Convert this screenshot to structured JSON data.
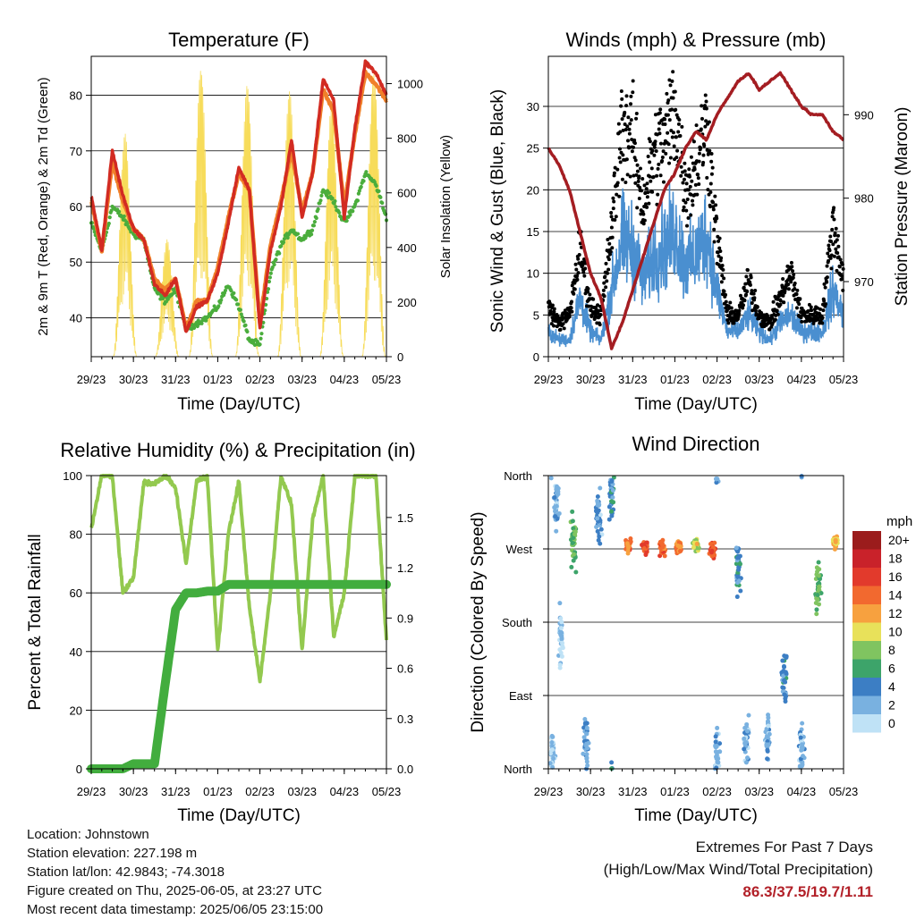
{
  "days": [
    "29/23",
    "30/23",
    "31/23",
    "01/23",
    "02/23",
    "03/23",
    "04/23",
    "05/23"
  ],
  "colors": {
    "temp_2m": "#d22b22",
    "temp_9m": "#f0802a",
    "dewpoint": "#4aad3c",
    "solar": "#f7dc5a",
    "wind": "#4a8fd0",
    "gust": "#000000",
    "pressure": "#a41d22",
    "rh": "#93c94f",
    "precip": "#42ad3e"
  },
  "panels": {
    "temperature": {
      "title": "Temperature (F)",
      "xlabel": "Time (Day/UTC)",
      "ylabel": "2m & 9m T (Red, Orange) & 2m Td (Green)",
      "ylabel_right": "Solar Insolation (Yellow)",
      "ylim": [
        33,
        87
      ],
      "ylim_right": [
        0,
        1100
      ],
      "yticks": [
        40,
        50,
        60,
        70,
        80
      ],
      "yticks_right": [
        0,
        200,
        400,
        600,
        800,
        1000
      ]
    },
    "winds": {
      "title": "Winds (mph) & Pressure (mb)",
      "xlabel": "Time (Day/UTC)",
      "ylabel": "Sonic Wind & Gust (Blue, Black)",
      "ylabel_right": "Station Pressure (Maroon)",
      "ylim": [
        0,
        36
      ],
      "ylim_right": [
        961,
        997
      ],
      "yticks": [
        0,
        5,
        10,
        15,
        20,
        25,
        30
      ],
      "yticks_right": [
        970,
        980,
        990
      ]
    },
    "humidity": {
      "title": "Relative Humidity (%) & Precipitation (in)",
      "xlabel": "Time (Day/UTC)",
      "ylabel": "Percent & Total Rainfall",
      "ylim": [
        0,
        100
      ],
      "ylim_right": [
        0,
        1.75
      ],
      "yticks": [
        0,
        20,
        40,
        60,
        80,
        100
      ],
      "yticks_right": [
        "0.0",
        "0.3",
        "0.6",
        "0.9",
        "1.2",
        "1.5"
      ]
    },
    "direction": {
      "title": "Wind Direction",
      "xlabel": "Time (Day/UTC)",
      "ylabel": "Direction (Colored By Speed)",
      "ylabels": [
        "North",
        "East",
        "South",
        "West",
        "North"
      ],
      "colorbar_title": "mph",
      "colorbar_labels": [
        "20+",
        "18",
        "16",
        "14",
        "12",
        "10",
        "8",
        "6",
        "4",
        "2",
        "0"
      ],
      "colorbar_colors": [
        "#9b1c1c",
        "#c9222a",
        "#e23a2c",
        "#f2692f",
        "#f7a13f",
        "#e8e15a",
        "#80c460",
        "#3da46a",
        "#3c7ec4",
        "#79b1e0",
        "#bfe2f6"
      ]
    }
  },
  "chart_data": [
    {
      "type": "line",
      "title": "Temperature (F)",
      "xlabel": "Time (Day/UTC)",
      "ylabel": "2m & 9m T (Red, Orange) & 2m Td (Green)",
      "ylabel_right": "Solar Insolation (Yellow)",
      "x_days": [
        0,
        0.25,
        0.5,
        0.75,
        1.0,
        1.25,
        1.5,
        1.75,
        2.0,
        2.25,
        2.5,
        2.75,
        3.0,
        3.25,
        3.5,
        3.75,
        4.0,
        4.25,
        4.5,
        4.75,
        5.0,
        5.25,
        5.5,
        5.75,
        6.0,
        6.25,
        6.5,
        6.75,
        7.0
      ],
      "series": [
        {
          "values": [
            62,
            52,
            70,
            62,
            56,
            54,
            46,
            44,
            47,
            37.5,
            42,
            43,
            48,
            57,
            67,
            63,
            38,
            52,
            60,
            72,
            58,
            66,
            83,
            79,
            58,
            74,
            86,
            84,
            80
          ]
        },
        {
          "values": [
            61,
            52,
            68,
            61,
            56,
            54,
            47,
            45,
            47,
            38,
            43,
            43,
            49,
            58,
            66,
            63,
            39,
            53,
            61,
            70,
            59,
            66,
            81,
            77,
            60,
            73,
            84,
            82,
            79
          ]
        },
        {
          "values": [
            57,
            52,
            60,
            58,
            55,
            54,
            45,
            43,
            45,
            38,
            39,
            40,
            42,
            46,
            42,
            36,
            35,
            48,
            53,
            56,
            54,
            56,
            63,
            61,
            57,
            60,
            66,
            64,
            58
          ]
        }
      ],
      "solar_peaks": [
        {
          "day": 0.8,
          "value": 820
        },
        {
          "day": 1.8,
          "value": 430
        },
        {
          "day": 2.6,
          "value": 1060
        },
        {
          "day": 3.7,
          "value": 1000
        },
        {
          "day": 4.7,
          "value": 980
        },
        {
          "day": 5.7,
          "value": 930
        },
        {
          "day": 6.7,
          "value": 1050
        }
      ],
      "ylim": [
        33,
        87
      ],
      "ylim_right": [
        0,
        1100
      ]
    },
    {
      "type": "scatter",
      "title": "Winds (mph) & Pressure (mb)",
      "xlabel": "Time (Day/UTC)",
      "ylabel": "Sonic Wind & Gust (Blue, Black)",
      "ylabel_right": "Station Pressure (Maroon)",
      "x_days": [
        0,
        0.25,
        0.5,
        0.75,
        1.0,
        1.25,
        1.5,
        1.75,
        2.0,
        2.25,
        2.5,
        2.75,
        3.0,
        3.25,
        3.5,
        3.75,
        4.0,
        4.25,
        4.5,
        4.75,
        5.0,
        5.25,
        5.5,
        5.75,
        6.0,
        6.25,
        6.5,
        6.75,
        7.0
      ],
      "series": [
        {
          "values": [
            3,
            2,
            2,
            7,
            3,
            2,
            8,
            14,
            13,
            9,
            12,
            13,
            15,
            11,
            12,
            15,
            8,
            3,
            3,
            5,
            3,
            2,
            4,
            5,
            3,
            3,
            3,
            8,
            5
          ]
        },
        {
          "values": [
            6,
            4,
            5,
            13,
            6,
            5,
            15,
            28,
            26,
            18,
            24,
            26,
            30,
            20,
            23,
            28,
            14,
            5,
            5,
            9,
            5,
            4,
            7,
            10,
            5,
            5,
            5,
            16,
            9
          ]
        },
        {
          "values": [
            986,
            984,
            981,
            976,
            971,
            968,
            962,
            965,
            969,
            973,
            977,
            981,
            983,
            986,
            988,
            987,
            990,
            992,
            994,
            995,
            993,
            994,
            995,
            993,
            991,
            990,
            990,
            988,
            987
          ]
        }
      ],
      "ylim": [
        0,
        36
      ],
      "ylim_right": [
        961,
        997
      ]
    },
    {
      "type": "line",
      "title": "Relative Humidity (%) & Precipitation (in)",
      "xlabel": "Time (Day/UTC)",
      "ylabel": "Percent & Total Rainfall",
      "x_days": [
        0,
        0.25,
        0.5,
        0.75,
        1.0,
        1.25,
        1.5,
        1.75,
        2.0,
        2.25,
        2.5,
        2.75,
        3.0,
        3.25,
        3.5,
        3.75,
        4.0,
        4.25,
        4.5,
        4.75,
        5.0,
        5.25,
        5.5,
        5.75,
        6.0,
        6.25,
        6.5,
        6.75,
        7.0
      ],
      "series": [
        {
          "values": [
            82,
            100,
            100,
            60,
            65,
            98,
            97,
            100,
            96,
            70,
            98,
            100,
            40,
            80,
            98,
            55,
            30,
            60,
            100,
            90,
            40,
            85,
            100,
            45,
            60,
            100,
            100,
            100,
            44
          ]
        },
        {
          "values": [
            0,
            0,
            0,
            0,
            0.03,
            0.03,
            0.03,
            0.5,
            0.95,
            1.05,
            1.05,
            1.06,
            1.06,
            1.1,
            1.1,
            1.1,
            1.1,
            1.1,
            1.1,
            1.1,
            1.1,
            1.1,
            1.1,
            1.1,
            1.1,
            1.1,
            1.1,
            1.1,
            1.1
          ]
        }
      ],
      "ylim": [
        0,
        100
      ],
      "ylim_right": [
        0,
        1.75
      ]
    },
    {
      "type": "scatter",
      "title": "Wind Direction",
      "xlabel": "Time (Day/UTC)",
      "ylabel": "Direction (Colored By Speed)",
      "direction_clusters": [
        {
          "day": 0.1,
          "dir": 20,
          "speed": 1
        },
        {
          "day": 0.2,
          "dir": 320,
          "speed": 2
        },
        {
          "day": 0.3,
          "dir": 160,
          "speed": 1
        },
        {
          "day": 0.6,
          "dir": 280,
          "speed": 7
        },
        {
          "day": 0.9,
          "dir": 30,
          "speed": 3
        },
        {
          "day": 1.2,
          "dir": 310,
          "speed": 3
        },
        {
          "day": 1.5,
          "dir": 335,
          "speed": 4
        },
        {
          "day": 1.9,
          "dir": 275,
          "speed": 14
        },
        {
          "day": 2.3,
          "dir": 272,
          "speed": 16
        },
        {
          "day": 2.7,
          "dir": 270,
          "speed": 14
        },
        {
          "day": 3.1,
          "dir": 272,
          "speed": 13
        },
        {
          "day": 3.5,
          "dir": 275,
          "speed": 9
        },
        {
          "day": 3.9,
          "dir": 268,
          "speed": 15
        },
        {
          "day": 4.0,
          "dir": 15,
          "speed": 2
        },
        {
          "day": 4.5,
          "dir": 250,
          "speed": 4
        },
        {
          "day": 4.7,
          "dir": 30,
          "speed": 2
        },
        {
          "day": 5.2,
          "dir": 40,
          "speed": 2
        },
        {
          "day": 5.6,
          "dir": 120,
          "speed": 4
        },
        {
          "day": 6.0,
          "dir": 20,
          "speed": 2
        },
        {
          "day": 6.4,
          "dir": 225,
          "speed": 7
        },
        {
          "day": 6.8,
          "dir": 280,
          "speed": 11
        }
      ]
    }
  ],
  "info": {
    "location": "Location: Johnstown",
    "elevation": "Station elevation: 227.198 m",
    "latlon": "Station lat/lon: 42.9843; -74.3018",
    "created": "Figure created on Thu, 2025-06-05, at 23:27 UTC",
    "recent": "Most recent data timestamp: 2025/06/05 23:15:00"
  },
  "extremes": {
    "title": "Extremes For Past 7 Days",
    "subtitle": "(High/Low/Max Wind/Total Precipitation)",
    "values": "86.3/37.5/19.7/1.11"
  }
}
